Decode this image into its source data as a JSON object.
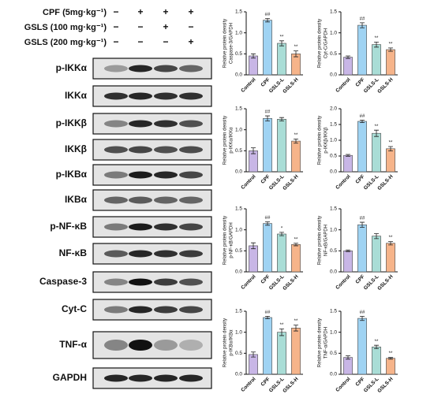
{
  "blot": {
    "treatments": [
      {
        "label": "CPF  (5mg·kg⁻¹)",
        "signs": [
          "−",
          "+",
          "+",
          "+"
        ]
      },
      {
        "label": "GSLS (100 mg·kg⁻¹)",
        "signs": [
          "−",
          "−",
          "+",
          "−"
        ]
      },
      {
        "label": "GSLS (200 mg·kg⁻¹)",
        "signs": [
          "−",
          "−",
          "−",
          "+"
        ]
      }
    ],
    "proteins": [
      "p-IKKα",
      "IKKα",
      "p-IKKβ",
      "IKKβ",
      "p-IKBα",
      "IKBα",
      "p-NF-κB",
      "NF-κB",
      "Caspase-3",
      "Cyt-C",
      "TNF-α",
      "GAPDH"
    ]
  },
  "chart_data": [
    {
      "type": "bar",
      "ylabel": [
        "Relative protein density",
        "Caspase-3/GAPDH"
      ],
      "categories": [
        "Control",
        "CPF",
        "GSLS-L",
        "GSLS-H"
      ],
      "values": [
        0.45,
        1.3,
        0.75,
        0.5
      ],
      "errors": [
        0.05,
        0.04,
        0.06,
        0.07
      ],
      "annotations": [
        null,
        "##",
        "**",
        "**"
      ],
      "colors": [
        "#c8b6e6",
        "#9fd3f3",
        "#a9ddd6",
        "#f6b48a"
      ],
      "ylim": [
        0,
        1.5
      ],
      "yticks": [
        {
          "value": 0,
          "label": "0.0"
        },
        0.5,
        {
          "value": 1,
          "label": "1.0"
        },
        1.5
      ]
    },
    {
      "type": "bar",
      "ylabel": [
        "Relative protein density",
        "Cyt-C/GAPDH"
      ],
      "categories": [
        "Control",
        "CPF",
        "GSLS-L",
        "GSLS-H"
      ],
      "values": [
        0.42,
        1.18,
        0.72,
        0.6
      ],
      "errors": [
        0.03,
        0.06,
        0.06,
        0.04
      ],
      "annotations": [
        null,
        "##",
        "**",
        "**"
      ],
      "colors": [
        "#c8b6e6",
        "#9fd3f3",
        "#a9ddd6",
        "#f6b48a"
      ],
      "ylim": [
        0,
        1.5
      ],
      "yticks": [
        {
          "value": 0,
          "label": "0.0"
        },
        0.5,
        {
          "value": 1,
          "label": "1.0"
        },
        1.5
      ]
    },
    {
      "type": "bar",
      "ylabel": [
        "Relative protein density",
        "p-IKKα/IKKα"
      ],
      "categories": [
        "Control",
        "CPF",
        "GSLS-L",
        "GSLS-H"
      ],
      "values": [
        0.5,
        1.27,
        1.25,
        0.73
      ],
      "errors": [
        0.07,
        0.06,
        0.04,
        0.05
      ],
      "annotations": [
        null,
        "##",
        null,
        "**"
      ],
      "colors": [
        "#c8b6e6",
        "#9fd3f3",
        "#a9ddd6",
        "#f6b48a"
      ],
      "ylim": [
        0,
        1.5
      ],
      "yticks": [
        {
          "value": 0,
          "label": "0.0"
        },
        0.5,
        {
          "value": 1,
          "label": "1.0"
        },
        1.5
      ]
    },
    {
      "type": "bar",
      "ylabel": [
        "Relative protein density",
        "p-IKKβ/IKKβ"
      ],
      "categories": [
        "Control",
        "CPF",
        "GSLS-L",
        "GSLS-H"
      ],
      "values": [
        0.52,
        1.6,
        1.22,
        0.73
      ],
      "errors": [
        0.03,
        0.04,
        0.1,
        0.07
      ],
      "annotations": [
        null,
        "##",
        "**",
        "**"
      ],
      "colors": [
        "#c8b6e6",
        "#9fd3f3",
        "#a9ddd6",
        "#f6b48a"
      ],
      "ylim": [
        0,
        2
      ],
      "yticks": [
        {
          "value": 0,
          "label": "0.0"
        },
        0.5,
        {
          "value": 1,
          "label": "1.0"
        },
        1.5,
        {
          "value": 2,
          "label": "2.0"
        }
      ]
    },
    {
      "type": "bar",
      "ylabel": [
        "Relative protein density",
        "p-NF-κB/GAPDH"
      ],
      "categories": [
        "Control",
        "CPF",
        "GSLS-L",
        "GSLS-H"
      ],
      "values": [
        0.62,
        1.15,
        0.9,
        0.65
      ],
      "errors": [
        0.07,
        0.04,
        0.04,
        0.03
      ],
      "annotations": [
        null,
        "##",
        "*",
        "**"
      ],
      "colors": [
        "#c8b6e6",
        "#9fd3f3",
        "#a9ddd6",
        "#f6b48a"
      ],
      "ylim": [
        0,
        1.5
      ],
      "yticks": [
        {
          "value": 0,
          "label": "0.0"
        },
        0.5,
        {
          "value": 1,
          "label": "1.0"
        },
        1.5
      ]
    },
    {
      "type": "bar",
      "ylabel": [
        "Relative protein density",
        "NF-κB/GAPDH"
      ],
      "categories": [
        "Control",
        "CPF",
        "GSLS-L",
        "GSLS-H"
      ],
      "values": [
        0.5,
        1.12,
        0.85,
        0.68
      ],
      "errors": [
        0.02,
        0.06,
        0.06,
        0.04
      ],
      "annotations": [
        null,
        "##",
        null,
        "**"
      ],
      "colors": [
        "#c8b6e6",
        "#9fd3f3",
        "#a9ddd6",
        "#f6b48a"
      ],
      "ylim": [
        0,
        1.5
      ],
      "yticks": [
        {
          "value": 0,
          "label": "0.0"
        },
        0.5,
        {
          "value": 1,
          "label": "1.0"
        },
        1.5
      ]
    },
    {
      "type": "bar",
      "ylabel": [
        "Relative protein density",
        "p-IKBα/IKBα"
      ],
      "categories": [
        "Control",
        "CPF",
        "GSLS-L",
        "GSLS-H"
      ],
      "values": [
        0.47,
        1.35,
        1.0,
        1.1
      ],
      "errors": [
        0.06,
        0.03,
        0.08,
        0.07
      ],
      "annotations": [
        null,
        "##",
        "**",
        "**"
      ],
      "colors": [
        "#c8b6e6",
        "#9fd3f3",
        "#a9ddd6",
        "#f6b48a"
      ],
      "ylim": [
        0,
        1.5
      ],
      "yticks": [
        {
          "value": 0,
          "label": "0.0"
        },
        0.5,
        {
          "value": 1,
          "label": "1.0"
        },
        1.5
      ]
    },
    {
      "type": "bar",
      "ylabel": [
        "Relative protein density",
        "TNF-α/GAPDH"
      ],
      "categories": [
        "Control",
        "CPF",
        "GSLS-L",
        "GSLS-H"
      ],
      "values": [
        0.4,
        1.33,
        0.65,
        0.38
      ],
      "errors": [
        0.04,
        0.05,
        0.04,
        0.02
      ],
      "annotations": [
        null,
        "##",
        "**",
        "**"
      ],
      "colors": [
        "#c8b6e6",
        "#9fd3f3",
        "#a9ddd6",
        "#f6b48a"
      ],
      "ylim": [
        0,
        1.5
      ],
      "yticks": [
        {
          "value": 0,
          "label": "0.0"
        },
        0.5,
        {
          "value": 1,
          "label": "1.0"
        },
        1.5
      ]
    }
  ]
}
